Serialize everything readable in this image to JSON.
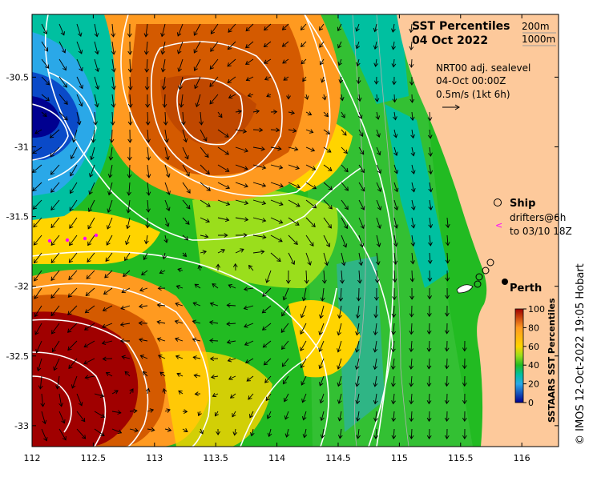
{
  "map": {
    "title_line1": "SST Percentiles",
    "title_line2": "04 Oct 2022",
    "depth_labels": [
      "200m",
      "1000m"
    ],
    "sealevel_label": "NRT00 adj. sealevel",
    "sealevel_time": "04-Oct 00:00Z",
    "vector_scale": "0.5m/s (1kt 6h)",
    "ship_label": "Ship",
    "drifters_label_line1": "drifters@6h",
    "drifters_label_line2": "to 03/10 18Z",
    "city_label": "Perth",
    "colorbar_label": "SSTAARS SST Percentiles",
    "colorbar_ticks": [
      "100",
      "80",
      "60",
      "40",
      "20",
      "0"
    ],
    "credit": "© IMOS 12-Oct-2022 19:05 Hobart",
    "x_ticks": [
      "112",
      "112.5",
      "113",
      "113.5",
      "114",
      "114.5",
      "115",
      "115.5",
      "116"
    ],
    "y_ticks": [
      "-30.5",
      "-31",
      "-31.5",
      "-32",
      "-32.5",
      "-33"
    ],
    "lon_range": [
      112,
      116.3
    ],
    "lat_range": [
      -33.15,
      -30.05
    ],
    "colors": {
      "land": "#fdc99b",
      "p100": "#a00000",
      "p85": "#d45a00",
      "p75": "#ff9a20",
      "p65": "#ffd400",
      "p55": "#9ade1c",
      "p45": "#22bb22",
      "p30": "#00c0a0",
      "p20": "#2aa8e8",
      "p10": "#0a4ac8",
      "p0": "#000090"
    }
  }
}
